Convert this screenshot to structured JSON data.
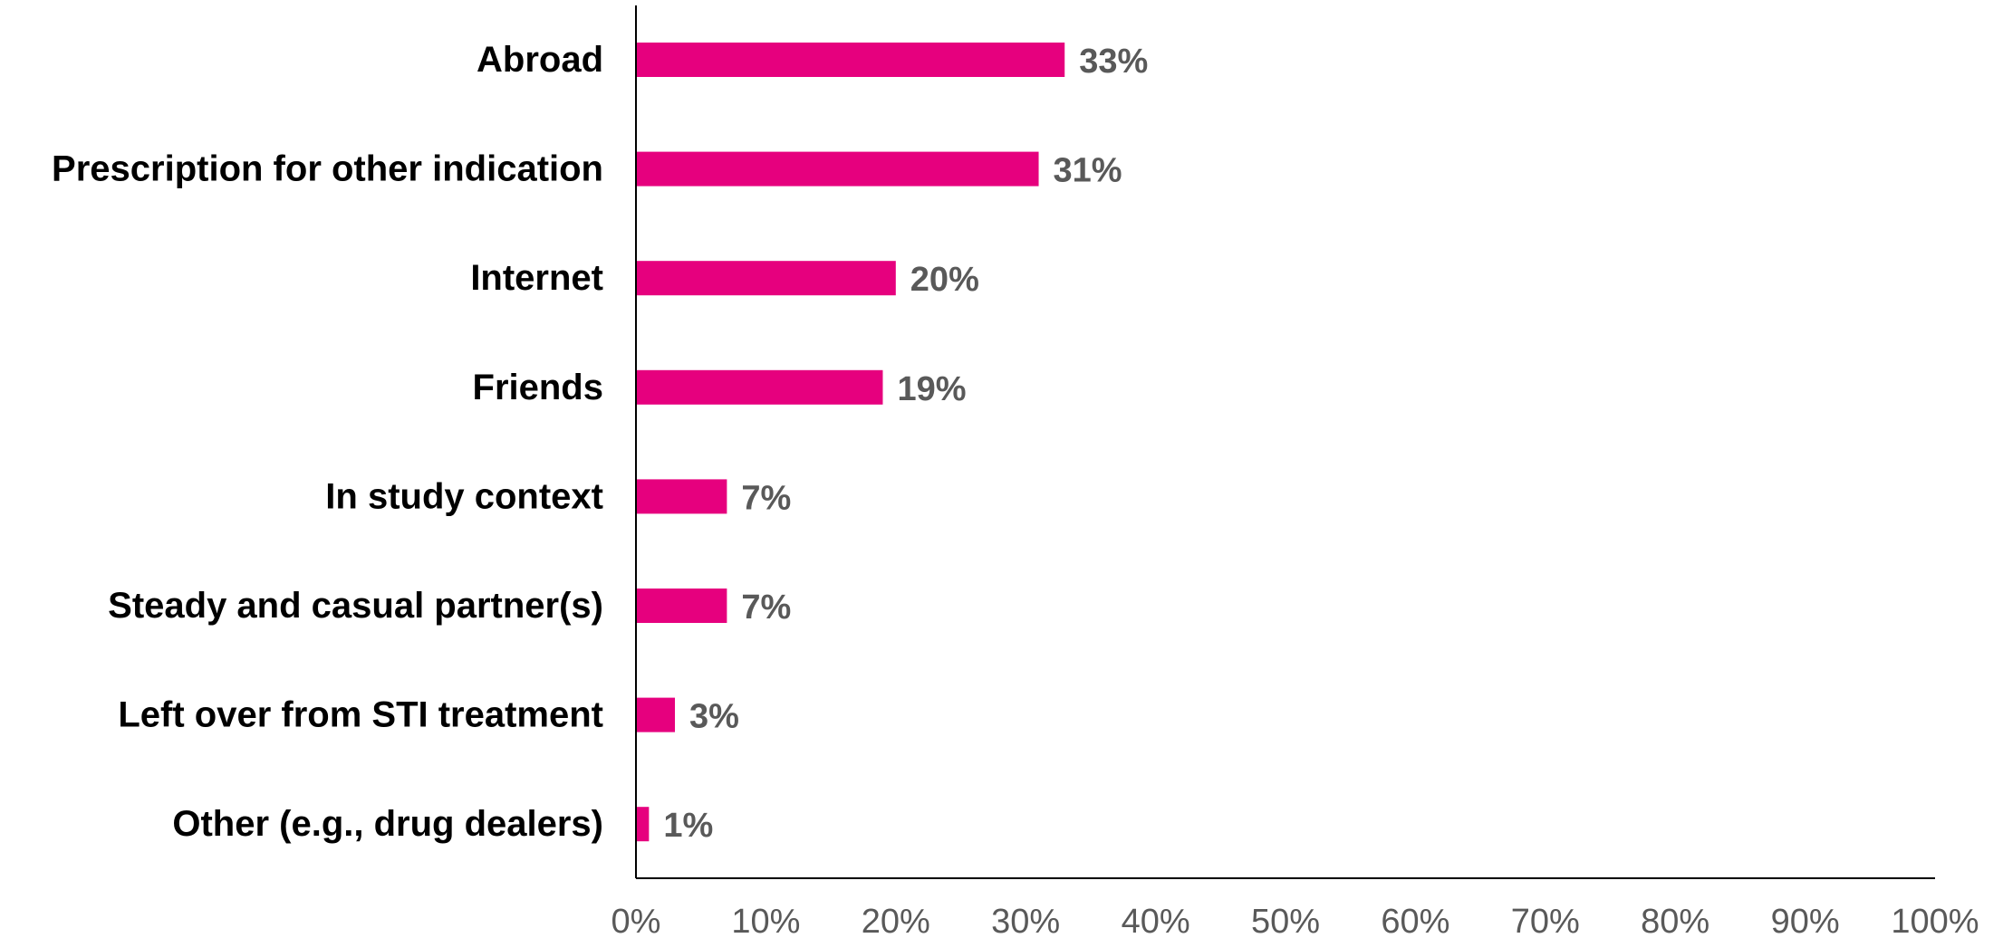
{
  "chart_data": {
    "type": "bar",
    "orientation": "horizontal",
    "categories": [
      "Abroad",
      "Prescription for other indication",
      "Internet",
      "Friends",
      "In study context",
      "Steady and casual partner(s)",
      "Left over from STI treatment",
      "Other (e.g., drug dealers)"
    ],
    "values": [
      33,
      31,
      20,
      19,
      7,
      7,
      3,
      1
    ],
    "value_labels": [
      "33%",
      "31%",
      "20%",
      "19%",
      "7%",
      "7%",
      "3%",
      "1%"
    ],
    "xlim": [
      0,
      100
    ],
    "x_ticks": [
      0,
      10,
      20,
      30,
      40,
      50,
      60,
      70,
      80,
      90,
      100
    ],
    "x_tick_labels": [
      "0%",
      "10%",
      "20%",
      "30%",
      "40%",
      "50%",
      "60%",
      "70%",
      "80%",
      "90%",
      "100%"
    ],
    "title": "",
    "xlabel": "",
    "ylabel": "",
    "grid": false,
    "legend": "none",
    "bar_color": "#E6007E"
  }
}
